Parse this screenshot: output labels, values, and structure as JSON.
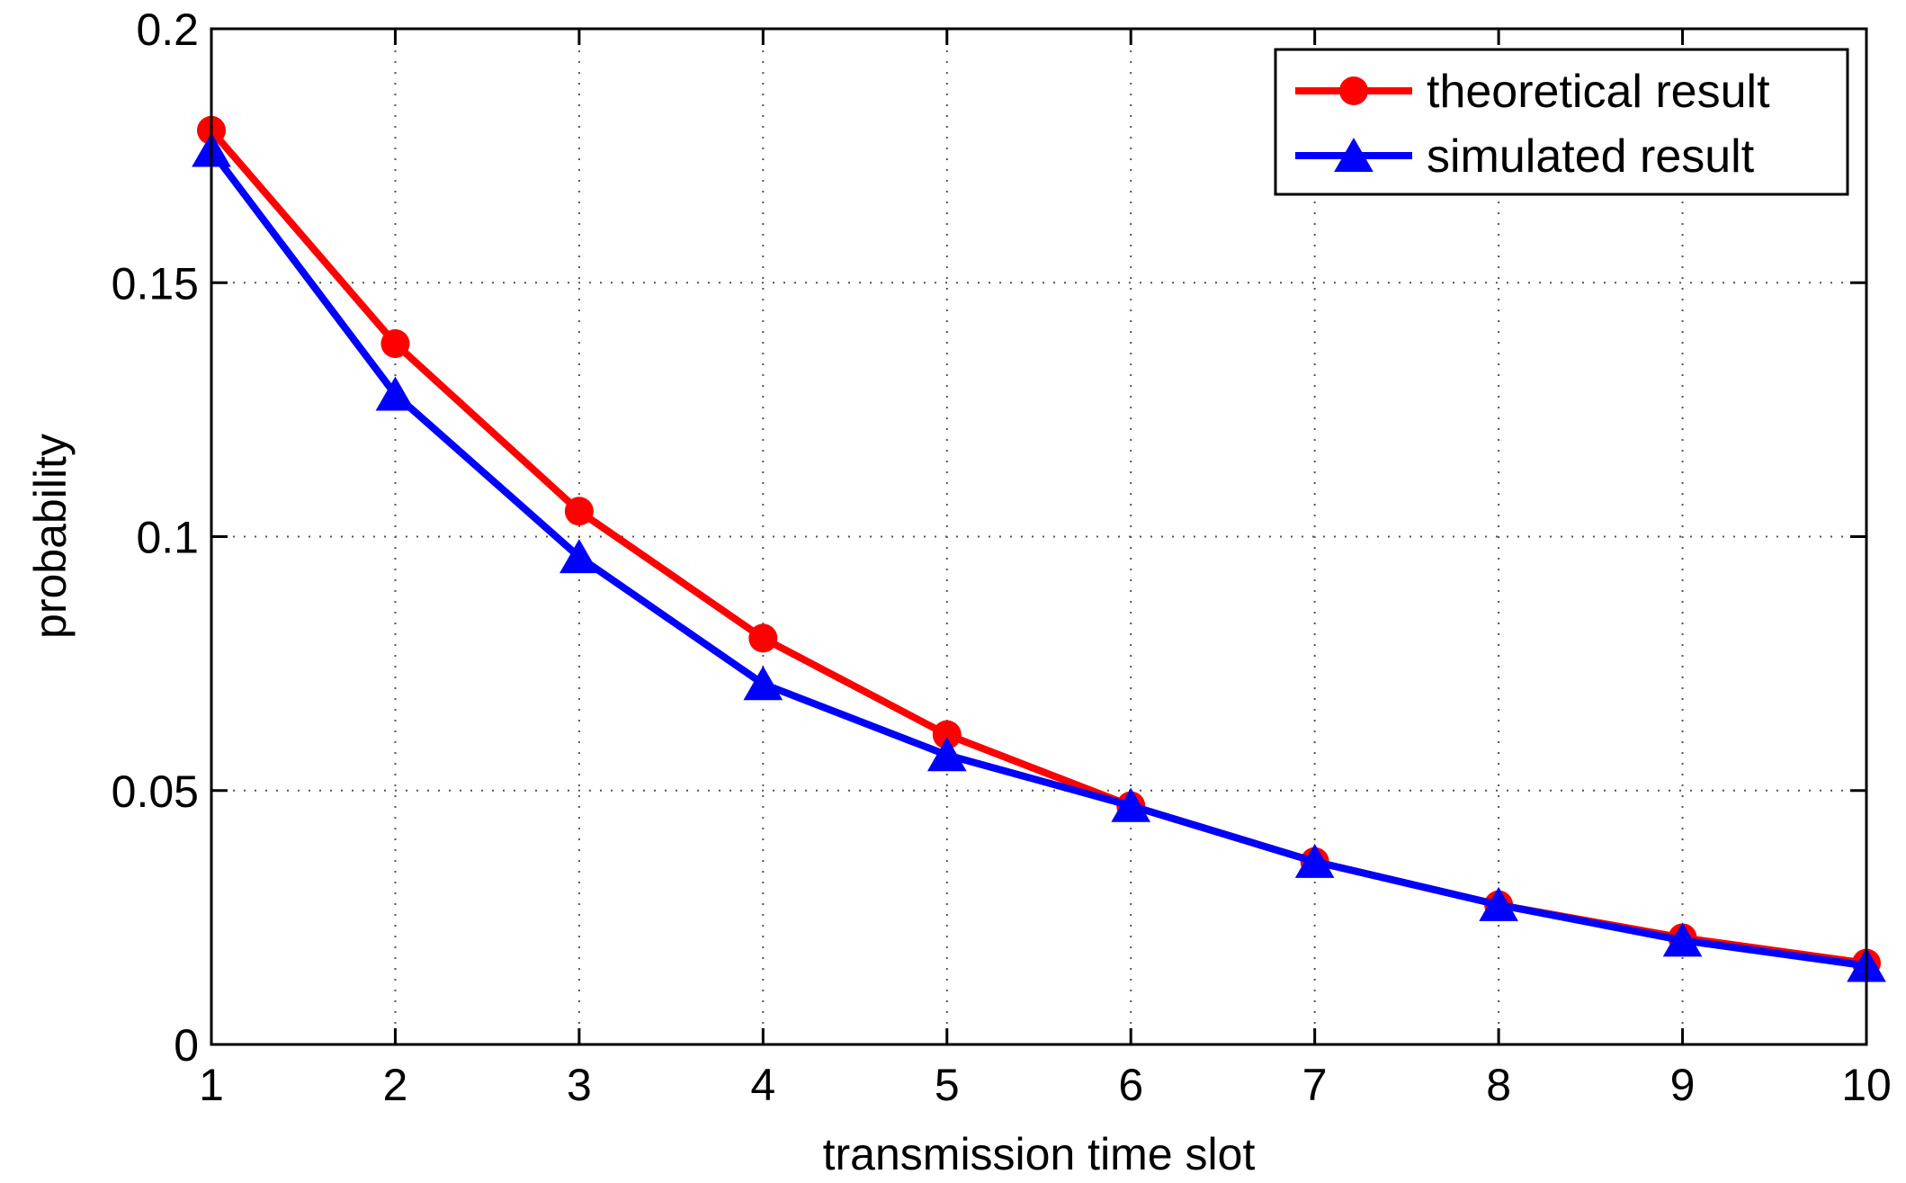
{
  "chart_data": {
    "type": "line",
    "title": "",
    "xlabel": "transmission time slot",
    "ylabel": "probability",
    "xlim": [
      1,
      10
    ],
    "ylim": [
      0,
      0.2
    ],
    "xticks": [
      1,
      2,
      3,
      4,
      5,
      6,
      7,
      8,
      9,
      10
    ],
    "xtick_labels": [
      "1",
      "2",
      "3",
      "4",
      "5",
      "6",
      "7",
      "8",
      "9",
      "10"
    ],
    "yticks": [
      0,
      0.05,
      0.1,
      0.15,
      0.2
    ],
    "ytick_labels": [
      "0",
      "0.05",
      "0.1",
      "0.15",
      "0.2"
    ],
    "grid": true,
    "legend_position": "top-right",
    "x": [
      1,
      2,
      3,
      4,
      5,
      6,
      7,
      8,
      9,
      10
    ],
    "series": [
      {
        "name": "theoretical result",
        "color": "#ff0000",
        "marker": "circle",
        "values": [
          0.18,
          0.138,
          0.105,
          0.08,
          0.061,
          0.047,
          0.036,
          0.0275,
          0.021,
          0.016
        ]
      },
      {
        "name": "simulated result",
        "color": "#0000ff",
        "marker": "triangle",
        "values": [
          0.176,
          0.128,
          0.096,
          0.071,
          0.057,
          0.047,
          0.036,
          0.0275,
          0.0205,
          0.0155
        ]
      }
    ]
  }
}
